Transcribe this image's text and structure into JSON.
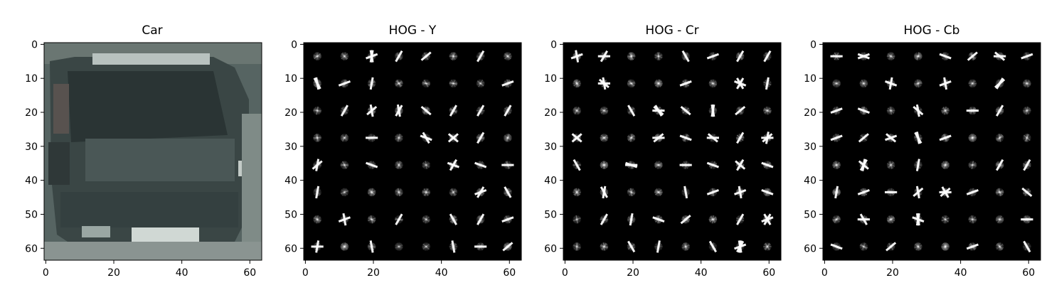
{
  "panels": [
    {
      "title": "Car",
      "kind": "photo"
    },
    {
      "title": "HOG - Y",
      "kind": "hog"
    },
    {
      "title": "HOG - Cr",
      "kind": "hog"
    },
    {
      "title": "HOG - Cb",
      "kind": "hog"
    }
  ],
  "axes": {
    "xticks": [
      "0",
      "20",
      "40",
      "60"
    ],
    "yticks": [
      "0",
      "10",
      "20",
      "30",
      "40",
      "50",
      "60"
    ]
  },
  "colors": {
    "photo_background": "#4e5a5a",
    "photo_body": "#3c4848",
    "hog_background": "#000000",
    "hog_stroke": "#ffffff"
  }
}
